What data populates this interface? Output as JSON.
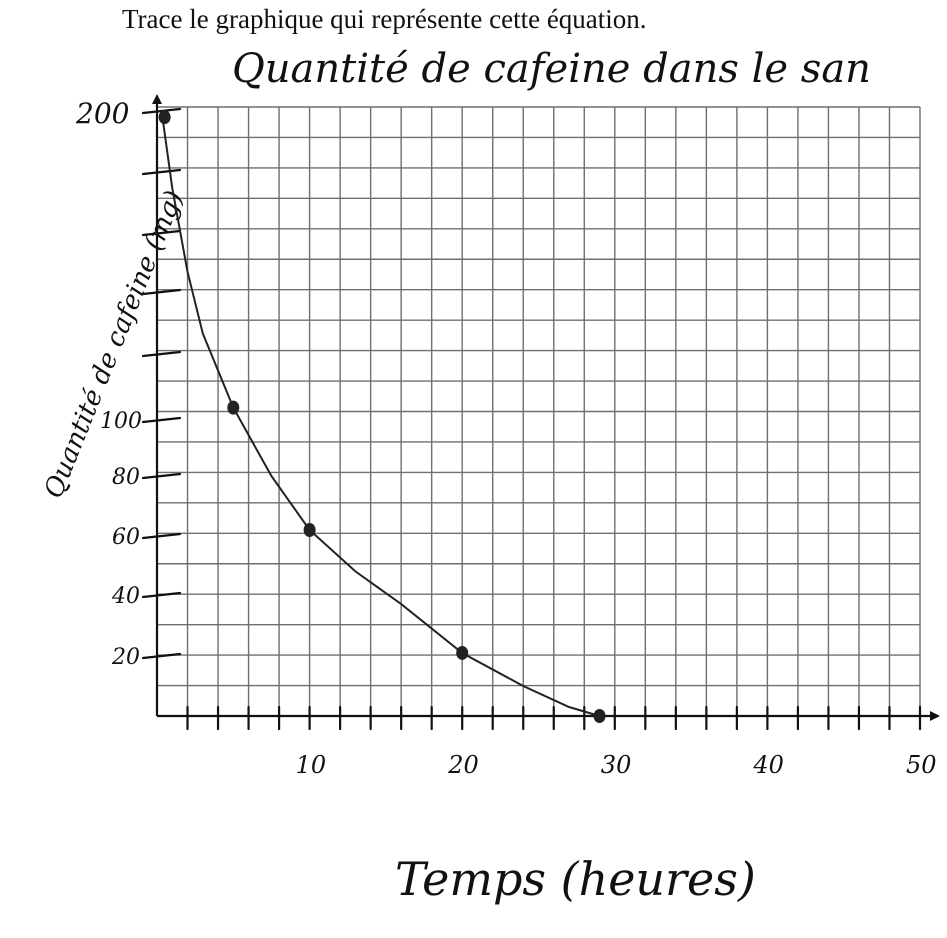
{
  "instruction": "Trace le graphique qui représente cette équation.",
  "chart_data": {
    "type": "line",
    "title": "Quantité de cafeine dans le san",
    "xlabel": "Temps (heures)",
    "ylabel": "Quantité de cafeine (mg)",
    "xlim": [
      0,
      50
    ],
    "ylim": [
      0,
      200
    ],
    "x_tick_labels": [
      "10",
      "20",
      "30",
      "40",
      "50"
    ],
    "x_tick_values": [
      10,
      20,
      30,
      40,
      50
    ],
    "y_tick_labels": [
      "20",
      "40",
      "60",
      "80",
      "100",
      "200"
    ],
    "y_tick_values": [
      20,
      40,
      60,
      80,
      100,
      200
    ],
    "series": [
      {
        "points": [
          {
            "x": 0.5,
            "y": 198
          },
          {
            "x": 5,
            "y": 104
          },
          {
            "x": 10,
            "y": 62
          },
          {
            "x": 20,
            "y": 21
          },
          {
            "x": 29,
            "y": 0
          }
        ],
        "curve": [
          [
            0.3,
            200
          ],
          [
            1,
            175
          ],
          [
            2,
            148
          ],
          [
            3,
            128
          ],
          [
            5,
            104
          ],
          [
            7.5,
            80
          ],
          [
            10,
            62
          ],
          [
            13,
            48
          ],
          [
            16,
            37
          ],
          [
            20,
            21
          ],
          [
            24,
            10
          ],
          [
            27,
            3
          ],
          [
            29,
            0
          ]
        ]
      }
    ],
    "grid": true
  }
}
